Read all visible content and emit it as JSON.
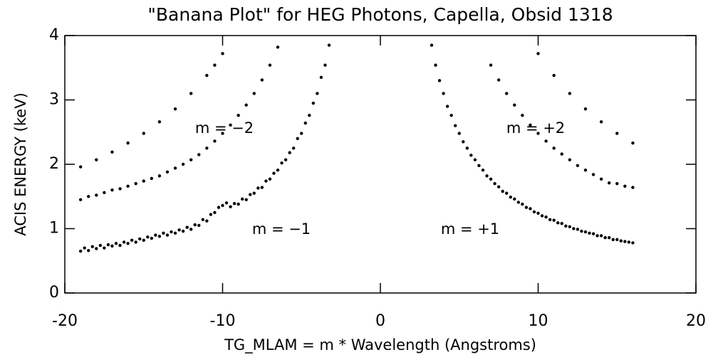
{
  "chart_data": {
    "type": "scatter",
    "title": "\"Banana Plot\" for HEG Photons, Capella, Obsid 1318",
    "x_label": "TG_MLAM = m * Wavelength (Angstroms)",
    "y_label": "ACIS ENERGY (keV)",
    "annotations": [
      "m = −2",
      "m = +2",
      "m = −1",
      "m = +1"
    ],
    "xlim": [
      -20,
      20
    ],
    "xticks": [
      -20,
      -10,
      0,
      10,
      20
    ],
    "ylim": [
      0,
      4
    ],
    "yticks": [
      0,
      1,
      2,
      3,
      4
    ],
    "series": [
      {
        "color": "#000000",
        "x": [
          -19,
          -18.75,
          -18.5,
          -18.25,
          -18,
          -17.75,
          -17.5,
          -17.25,
          -17,
          -16.75,
          -16.5,
          -16.25,
          -16,
          -15.75,
          -15.5,
          -15.25,
          -15,
          -14.75,
          -14.5,
          -14.25,
          -14,
          -13.75,
          -13.5,
          -13.25,
          -13,
          -12.75,
          -12.5,
          -12.25,
          -12,
          -11.75,
          -11.5,
          -11.25,
          -11,
          -10.75,
          -10.5,
          -10.25,
          -10,
          -9.75,
          -9.5,
          -9.25,
          -9,
          -8.75,
          -8.5,
          -8.25,
          -8,
          -7.75,
          -7.5,
          -7.25,
          -7,
          -6.75,
          -6.5,
          -6.25,
          -6,
          -5.75,
          -5.5,
          -5.25,
          -5,
          -4.75,
          -4.5,
          -4.25,
          -4,
          -3.75,
          -3.5,
          -3.25
        ],
        "values": [
          0.65,
          0.7,
          0.66,
          0.72,
          0.69,
          0.74,
          0.7,
          0.75,
          0.73,
          0.77,
          0.74,
          0.79,
          0.77,
          0.82,
          0.79,
          0.84,
          0.82,
          0.87,
          0.85,
          0.9,
          0.88,
          0.93,
          0.9,
          0.95,
          0.93,
          0.98,
          0.96,
          1.02,
          0.99,
          1.06,
          1.05,
          1.14,
          1.12,
          1.22,
          1.25,
          1.33,
          1.36,
          1.4,
          1.34,
          1.39,
          1.38,
          1.46,
          1.45,
          1.53,
          1.55,
          1.63,
          1.64,
          1.74,
          1.77,
          1.86,
          1.91,
          2.02,
          2.07,
          2.18,
          2.25,
          2.4,
          2.48,
          2.64,
          2.76,
          2.95,
          3.1,
          3.35,
          3.54,
          3.85
        ]
      },
      {
        "color": "#000000",
        "x": [
          3.25,
          3.5,
          3.75,
          4,
          4.25,
          4.5,
          4.75,
          5,
          5.25,
          5.5,
          5.75,
          6,
          6.25,
          6.5,
          6.75,
          7,
          7.25,
          7.5,
          7.75,
          8,
          8.25,
          8.5,
          8.75,
          9,
          9.25,
          9.5,
          9.75,
          10,
          10.25,
          10.5,
          10.75,
          11,
          11.25,
          11.5,
          11.75,
          12,
          12.25,
          12.5,
          12.75,
          13,
          13.25,
          13.5,
          13.75,
          14,
          14.25,
          14.5,
          14.75,
          15,
          15.25,
          15.5,
          15.75,
          16
        ],
        "values": [
          3.85,
          3.54,
          3.3,
          3.1,
          2.9,
          2.76,
          2.6,
          2.48,
          2.35,
          2.25,
          2.14,
          2.07,
          1.98,
          1.91,
          1.82,
          1.77,
          1.7,
          1.65,
          1.58,
          1.55,
          1.49,
          1.46,
          1.41,
          1.38,
          1.33,
          1.31,
          1.26,
          1.24,
          1.2,
          1.18,
          1.14,
          1.13,
          1.09,
          1.08,
          1.04,
          1.03,
          1.0,
          0.99,
          0.96,
          0.95,
          0.93,
          0.92,
          0.89,
          0.89,
          0.86,
          0.86,
          0.83,
          0.83,
          0.81,
          0.8,
          0.79,
          0.78
        ]
      },
      {
        "color": "#000000",
        "x": [
          -19,
          -18.5,
          -18,
          -17.5,
          -17,
          -16.5,
          -16,
          -15.5,
          -15,
          -14.5,
          -14,
          -13.5,
          -13,
          -12.5,
          -12,
          -11.5,
          -11,
          -10.5,
          -10,
          -9.5,
          -9,
          -8.5,
          -8,
          -7.5,
          -7,
          -6.5
        ],
        "values": [
          1.45,
          1.5,
          1.52,
          1.56,
          1.6,
          1.62,
          1.66,
          1.7,
          1.74,
          1.78,
          1.82,
          1.88,
          1.94,
          2.0,
          2.07,
          2.15,
          2.25,
          2.36,
          2.48,
          2.61,
          2.76,
          2.92,
          3.1,
          3.31,
          3.54,
          3.82
        ]
      },
      {
        "color": "#000000",
        "x": [
          7,
          7.5,
          8,
          8.5,
          9,
          9.5,
          10,
          10.5,
          11,
          11.5,
          12,
          12.5,
          13,
          13.5,
          14,
          14.5,
          15,
          15.5,
          16
        ],
        "values": [
          3.54,
          3.31,
          3.1,
          2.92,
          2.76,
          2.61,
          2.48,
          2.36,
          2.25,
          2.16,
          2.07,
          1.98,
          1.91,
          1.84,
          1.77,
          1.71,
          1.7,
          1.66,
          1.64
        ]
      },
      {
        "color": "#000000",
        "x": [
          -19,
          -18,
          -17,
          -16,
          -15,
          -14,
          -13,
          -12,
          -11,
          -10.5,
          -10
        ],
        "values": [
          1.96,
          2.07,
          2.19,
          2.33,
          2.48,
          2.66,
          2.86,
          3.1,
          3.38,
          3.54,
          3.72
        ]
      },
      {
        "color": "#000000",
        "x": [
          10,
          11,
          12,
          13,
          14,
          15,
          16
        ],
        "values": [
          3.72,
          3.38,
          3.1,
          2.86,
          2.66,
          2.48,
          2.33
        ]
      }
    ]
  }
}
